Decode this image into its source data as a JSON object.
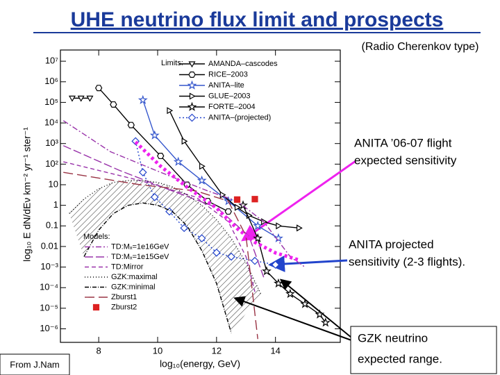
{
  "title": "UHE neutrino flux limit and prospects",
  "subtitle": "(Radio Cherenkov type)",
  "credit": "From J.Nam",
  "chart_data": {
    "type": "line",
    "x_label": "log₁₀(energy, GeV)",
    "y_label": "log₁₀ E dN/dEν km⁻² yr⁻¹ ster⁻¹",
    "xlim": [
      6.7,
      16.2
    ],
    "xticks": [
      8,
      10,
      12,
      14
    ],
    "ylim": [
      2.2e-07,
      35000000.0
    ],
    "y_scale": "log",
    "yticks": [
      {
        "value": 10000000.0,
        "label": "10⁷"
      },
      {
        "value": 1000000.0,
        "label": "10⁶"
      },
      {
        "value": 100000.0,
        "label": "10⁵"
      },
      {
        "value": 10000.0,
        "label": "10⁴"
      },
      {
        "value": 1000.0,
        "label": "10³"
      },
      {
        "value": 100,
        "label": "10²"
      },
      10,
      1,
      0.1,
      0.01,
      {
        "value": 0.001,
        "label": "10⁻³"
      },
      {
        "value": 0.0001,
        "label": "10⁻⁴"
      },
      {
        "value": 1e-05,
        "label": "10⁻⁵"
      },
      {
        "value": 1e-06,
        "label": "10⁻⁶"
      }
    ],
    "legend_groups": [
      {
        "title": "Limits:",
        "series": [
          {
            "name": "AMANDA–cascodes",
            "color": "#000000",
            "marker": "tri-down",
            "dash": "none",
            "x": [
              7.1,
              7.4,
              7.7
            ],
            "values": [
              160000.0,
              160000.0,
              160000.0
            ]
          },
          {
            "name": "RICE–2003",
            "color": "#000000",
            "marker": "hex",
            "dash": "none",
            "x": [
              8.0,
              8.5,
              9.1,
              10.1,
              11,
              11.7,
              12.4
            ],
            "values": [
              500000.0,
              79000.0,
              7900.0,
              250,
              10,
              1.6,
              0.5
            ]
          },
          {
            "name": "ANITA–lite",
            "color": "#3355cc",
            "marker": "star",
            "dash": "none",
            "x": [
              9.5,
              9.9,
              10.7,
              11.5,
              12.4,
              13.4,
              14.1
            ],
            "values": [
              130000.0,
              2500.0,
              130,
              16,
              1.6,
              0.1,
              0.025
            ]
          },
          {
            "name": "GLUE–2003",
            "color": "#000000",
            "marker": "tri-right",
            "dash": "none",
            "x": [
              10.4,
              10.9,
              11.5,
              12.2,
              12.7,
              13.1,
              13.6,
              14.1,
              14.8
            ],
            "values": [
              40000.0,
              1300.0,
              79,
              3.2,
              0.79,
              0.32,
              0.16,
              0.1,
              0.079
            ]
          },
          {
            "name": "FORTE–2004",
            "color": "#000000",
            "marker": "star",
            "dash": "none",
            "x": [
              12.9,
              13.4,
              13.7,
              14.1,
              14.5,
              15,
              15.5,
              15.7
            ],
            "values": [
              1,
              0.025,
              0.00063,
              0.00016,
              5e-05,
              1.6e-05,
              5e-06,
              2e-06
            ]
          },
          {
            "name": "ANITA–(projected)",
            "color": "#2244cc",
            "marker": "diamond",
            "dash": "2 3",
            "x": [
              9.25,
              9.5,
              9.9,
              10.4,
              10.9,
              11.5,
              12,
              12.5,
              13.3,
              14
            ],
            "values": [
              1300.0,
              40,
              2.5,
              0.5,
              0.079,
              0.025,
              0.005,
              0.0032,
              0.002,
              0.0013
            ]
          }
        ]
      },
      {
        "title": "Models:",
        "series": [
          {
            "name": "TD:Mₓ=1e16GeV",
            "color": "#9933aa",
            "marker": "none",
            "dash": "8 3 2 3",
            "x": [
              6.8,
              8.4,
              10.1,
              11.7,
              12.7,
              13.6,
              14.5,
              15
            ],
            "values": [
              13000.0,
              400,
              40,
              5,
              1.6,
              0.16,
              0.0032,
              0.001
            ]
          },
          {
            "name": "TD:Mₓ=1e15GeV",
            "color": "#9933aa",
            "marker": "none",
            "dash": "12 4",
            "x": [
              6.8,
              8.7,
              10.5,
              12,
              13.1,
              13.6
            ],
            "values": [
              790,
              50,
              5,
              0.79,
              0.032,
              0.00032
            ]
          },
          {
            "name": "TD:Mirror",
            "color": "#9933aa",
            "marker": "none",
            "dash": "6 4",
            "x": [
              6.8,
              9.4,
              11.3,
              12.4,
              13,
              13.3
            ],
            "values": [
              130,
              16,
              2.5,
              0.16,
              0.0032,
              6.3e-05
            ]
          },
          {
            "name": "GZK:maximal",
            "color": "#000000",
            "marker": "none",
            "dash": "1 3",
            "x": [
              7,
              7.5,
              8,
              8.5,
              9,
              9.5,
              10,
              10.5,
              11,
              11.5,
              12,
              12.5,
              13,
              13.5
            ],
            "values": [
              0.4,
              2,
              6.3,
              13,
              16,
              16,
              13,
              7.9,
              3.2,
              1,
              0.2,
              0.025,
              0.0016,
              5e-05
            ]
          },
          {
            "name": "GZK:minimal",
            "color": "#000000",
            "marker": "none",
            "dash": "6 2 1 2",
            "x": [
              7.5,
              8,
              8.5,
              9,
              9.5,
              10,
              10.5,
              11,
              11.5,
              12,
              12.5
            ],
            "values": [
              0.0032,
              0.063,
              0.4,
              1,
              1.3,
              1,
              0.5,
              0.1,
              0.0063,
              0.00016,
              6.3e-07
            ]
          },
          {
            "name": "Zburst1",
            "color": "#993344",
            "marker": "none",
            "dash": "14 6",
            "x": [
              6.8,
              9.4,
              11.3,
              12.4,
              13,
              13.4
            ],
            "values": [
              40,
              10,
              5,
              1.6,
              0.032,
              3.2e-07
            ]
          },
          {
            "name": "Zburst2",
            "color": "#dd2222",
            "marker": "square",
            "dash": "nolines",
            "x": [
              12.7,
              13.3
            ],
            "values": [
              1.9,
              2.0
            ]
          }
        ]
      }
    ],
    "annotations": [
      {
        "lines": [
          "ANITA ’06-07 flight",
          "expected sensitivity"
        ],
        "color": "#ee22ee",
        "x": [
          9.25,
          10.1,
          11,
          12,
          12.7,
          13.3,
          14,
          14.8
        ],
        "values": [
          1200.0,
          79,
          7.6,
          0.74,
          0.074,
          0.016,
          0.0049,
          0.0022
        ]
      },
      {
        "lines": [
          "ANITA projected",
          "sensitivity (2-3 flights)."
        ]
      },
      {
        "lines": [
          "GZK neutrino",
          "expected range."
        ]
      }
    ]
  }
}
